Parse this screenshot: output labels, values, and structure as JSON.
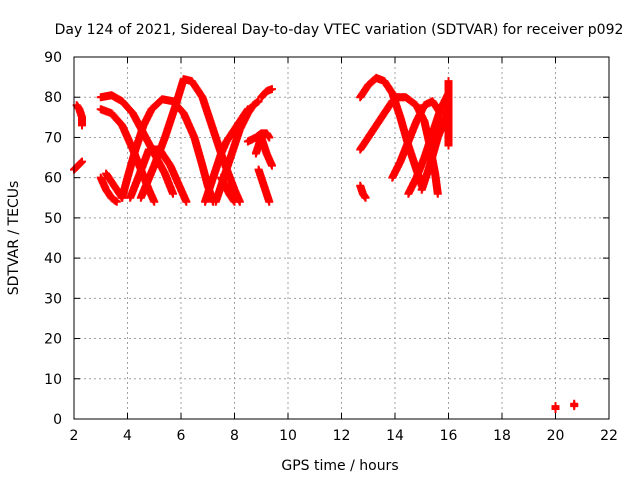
{
  "chart_data": {
    "type": "scatter",
    "title": "Day 124 of 2021, Sidereal Day-to-day VTEC variation (SDTVAR) for receiver p092",
    "xlabel": "GPS time / hours",
    "ylabel": "SDTVAR / TECUs",
    "xlim": [
      2,
      22
    ],
    "ylim": [
      0,
      90
    ],
    "xticks": [
      "2",
      "4",
      "6",
      "8",
      "10",
      "12",
      "14",
      "16",
      "18",
      "20",
      "22"
    ],
    "yticks": [
      "0",
      "10",
      "20",
      "30",
      "40",
      "50",
      "60",
      "70",
      "80",
      "90"
    ],
    "grid": true,
    "marker": "plus",
    "series_color": "#ff0000",
    "tracks": [
      {
        "name": "arc-a",
        "points": [
          [
            2.1,
            78
          ],
          [
            2.2,
            77
          ],
          [
            2.3,
            75
          ],
          [
            2.3,
            73
          ]
        ]
      },
      {
        "name": "arc-b",
        "points": [
          [
            2.0,
            62
          ],
          [
            2.15,
            63
          ],
          [
            2.3,
            64
          ]
        ]
      },
      {
        "name": "arc-c",
        "points": [
          [
            3.0,
            80
          ],
          [
            3.4,
            80.5
          ],
          [
            3.8,
            79
          ],
          [
            4.2,
            76
          ],
          [
            4.6,
            71
          ],
          [
            5.0,
            66
          ],
          [
            5.4,
            61
          ],
          [
            5.7,
            56
          ]
        ]
      },
      {
        "name": "arc-d",
        "points": [
          [
            3.0,
            77
          ],
          [
            3.4,
            76
          ],
          [
            3.8,
            73
          ],
          [
            4.2,
            67
          ],
          [
            4.5,
            62
          ],
          [
            4.8,
            57
          ],
          [
            5.0,
            54
          ]
        ]
      },
      {
        "name": "arc-e",
        "points": [
          [
            3.0,
            60
          ],
          [
            3.2,
            57
          ],
          [
            3.4,
            55
          ],
          [
            3.6,
            54
          ]
        ]
      },
      {
        "name": "arc-f",
        "points": [
          [
            3.2,
            61
          ],
          [
            3.5,
            58
          ],
          [
            3.8,
            55
          ]
        ]
      },
      {
        "name": "arc-g",
        "points": [
          [
            3.8,
            55
          ],
          [
            4.0,
            60
          ],
          [
            4.3,
            67
          ],
          [
            4.6,
            73
          ],
          [
            4.9,
            77
          ],
          [
            5.3,
            79.5
          ],
          [
            5.7,
            79
          ],
          [
            6.1,
            76
          ],
          [
            6.5,
            70
          ],
          [
            6.8,
            63
          ],
          [
            7.0,
            58
          ],
          [
            7.2,
            54
          ]
        ]
      },
      {
        "name": "arc-h",
        "points": [
          [
            4.1,
            55
          ],
          [
            4.4,
            60
          ],
          [
            4.8,
            67
          ],
          [
            5.2,
            67
          ],
          [
            5.6,
            63
          ],
          [
            6.0,
            57
          ],
          [
            6.2,
            54
          ]
        ]
      },
      {
        "name": "arc-i",
        "points": [
          [
            4.5,
            55
          ],
          [
            5.0,
            63
          ],
          [
            5.4,
            70
          ],
          [
            5.8,
            78
          ],
          [
            6.1,
            84.5
          ],
          [
            6.4,
            84
          ],
          [
            6.8,
            80
          ],
          [
            7.2,
            72
          ],
          [
            7.6,
            64
          ],
          [
            8.0,
            57
          ],
          [
            8.2,
            54
          ]
        ]
      },
      {
        "name": "arc-j",
        "points": [
          [
            6.9,
            54
          ],
          [
            7.1,
            58
          ],
          [
            7.3,
            62
          ],
          [
            7.5,
            66
          ],
          [
            7.7,
            69
          ],
          [
            7.9,
            71
          ],
          [
            8.1,
            73
          ],
          [
            8.3,
            75
          ],
          [
            8.5,
            77
          ]
        ]
      },
      {
        "name": "arc-k",
        "points": [
          [
            7.3,
            54
          ],
          [
            7.6,
            60
          ],
          [
            7.9,
            66
          ],
          [
            8.2,
            72
          ],
          [
            8.5,
            76
          ],
          [
            8.7,
            78
          ],
          [
            8.9,
            79
          ]
        ]
      },
      {
        "name": "arc-l",
        "points": [
          [
            7.5,
            60
          ],
          [
            7.8,
            56
          ],
          [
            8.0,
            54
          ]
        ]
      },
      {
        "name": "arc-m",
        "points": [
          [
            8.5,
            69
          ],
          [
            8.8,
            70
          ],
          [
            9.0,
            71
          ],
          [
            9.2,
            71
          ],
          [
            9.3,
            70
          ]
        ]
      },
      {
        "name": "arc-n",
        "points": [
          [
            8.9,
            62
          ],
          [
            9.1,
            58
          ],
          [
            9.3,
            54
          ]
        ]
      },
      {
        "name": "arc-o",
        "points": [
          [
            9.0,
            80
          ],
          [
            9.2,
            81.5
          ],
          [
            9.4,
            82
          ]
        ]
      },
      {
        "name": "arc-p",
        "points": [
          [
            8.8,
            66
          ],
          [
            9.0,
            70
          ],
          [
            9.2,
            66
          ],
          [
            9.4,
            63
          ]
        ]
      },
      {
        "name": "arc-q",
        "points": [
          [
            12.7,
            80
          ],
          [
            13.0,
            83
          ],
          [
            13.3,
            84.8
          ],
          [
            13.6,
            84
          ],
          [
            13.9,
            81
          ],
          [
            14.2,
            75
          ],
          [
            14.5,
            68
          ],
          [
            14.8,
            62
          ],
          [
            15.0,
            58
          ]
        ]
      },
      {
        "name": "arc-r",
        "points": [
          [
            12.7,
            67
          ],
          [
            13.0,
            70
          ],
          [
            13.3,
            73
          ],
          [
            13.6,
            76
          ],
          [
            13.9,
            79
          ],
          [
            14.1,
            80
          ]
        ]
      },
      {
        "name": "arc-s",
        "points": [
          [
            12.7,
            58
          ],
          [
            12.8,
            56
          ],
          [
            12.9,
            55
          ]
        ]
      },
      {
        "name": "arc-t",
        "points": [
          [
            13.9,
            60
          ],
          [
            14.2,
            64
          ],
          [
            14.5,
            69
          ],
          [
            14.8,
            74
          ],
          [
            15.1,
            78
          ],
          [
            15.4,
            79
          ],
          [
            15.7,
            76
          ]
        ]
      },
      {
        "name": "arc-u",
        "points": [
          [
            14.0,
            80
          ],
          [
            14.4,
            80
          ],
          [
            14.8,
            78
          ],
          [
            15.1,
            74
          ],
          [
            15.3,
            68
          ],
          [
            15.5,
            61
          ],
          [
            15.6,
            56
          ]
        ]
      },
      {
        "name": "arc-v",
        "points": [
          [
            14.5,
            56
          ],
          [
            14.8,
            60
          ],
          [
            15.1,
            65
          ],
          [
            15.4,
            71
          ],
          [
            15.7,
            77
          ],
          [
            16.0,
            81
          ]
        ]
      },
      {
        "name": "arc-w",
        "points": [
          [
            15.0,
            57
          ],
          [
            15.3,
            63
          ],
          [
            15.6,
            70
          ],
          [
            15.9,
            75
          ],
          [
            16.0,
            77
          ]
        ]
      },
      {
        "name": "arc-x",
        "points": [
          [
            16.0,
            84
          ],
          [
            16.0,
            74
          ],
          [
            16.0,
            68
          ]
        ]
      },
      {
        "name": "arc-y",
        "points": [
          [
            20.0,
            2.5
          ],
          [
            20.0,
            3.2
          ]
        ]
      },
      {
        "name": "arc-z",
        "points": [
          [
            20.7,
            3.2
          ],
          [
            20.7,
            3.8
          ]
        ]
      }
    ]
  }
}
